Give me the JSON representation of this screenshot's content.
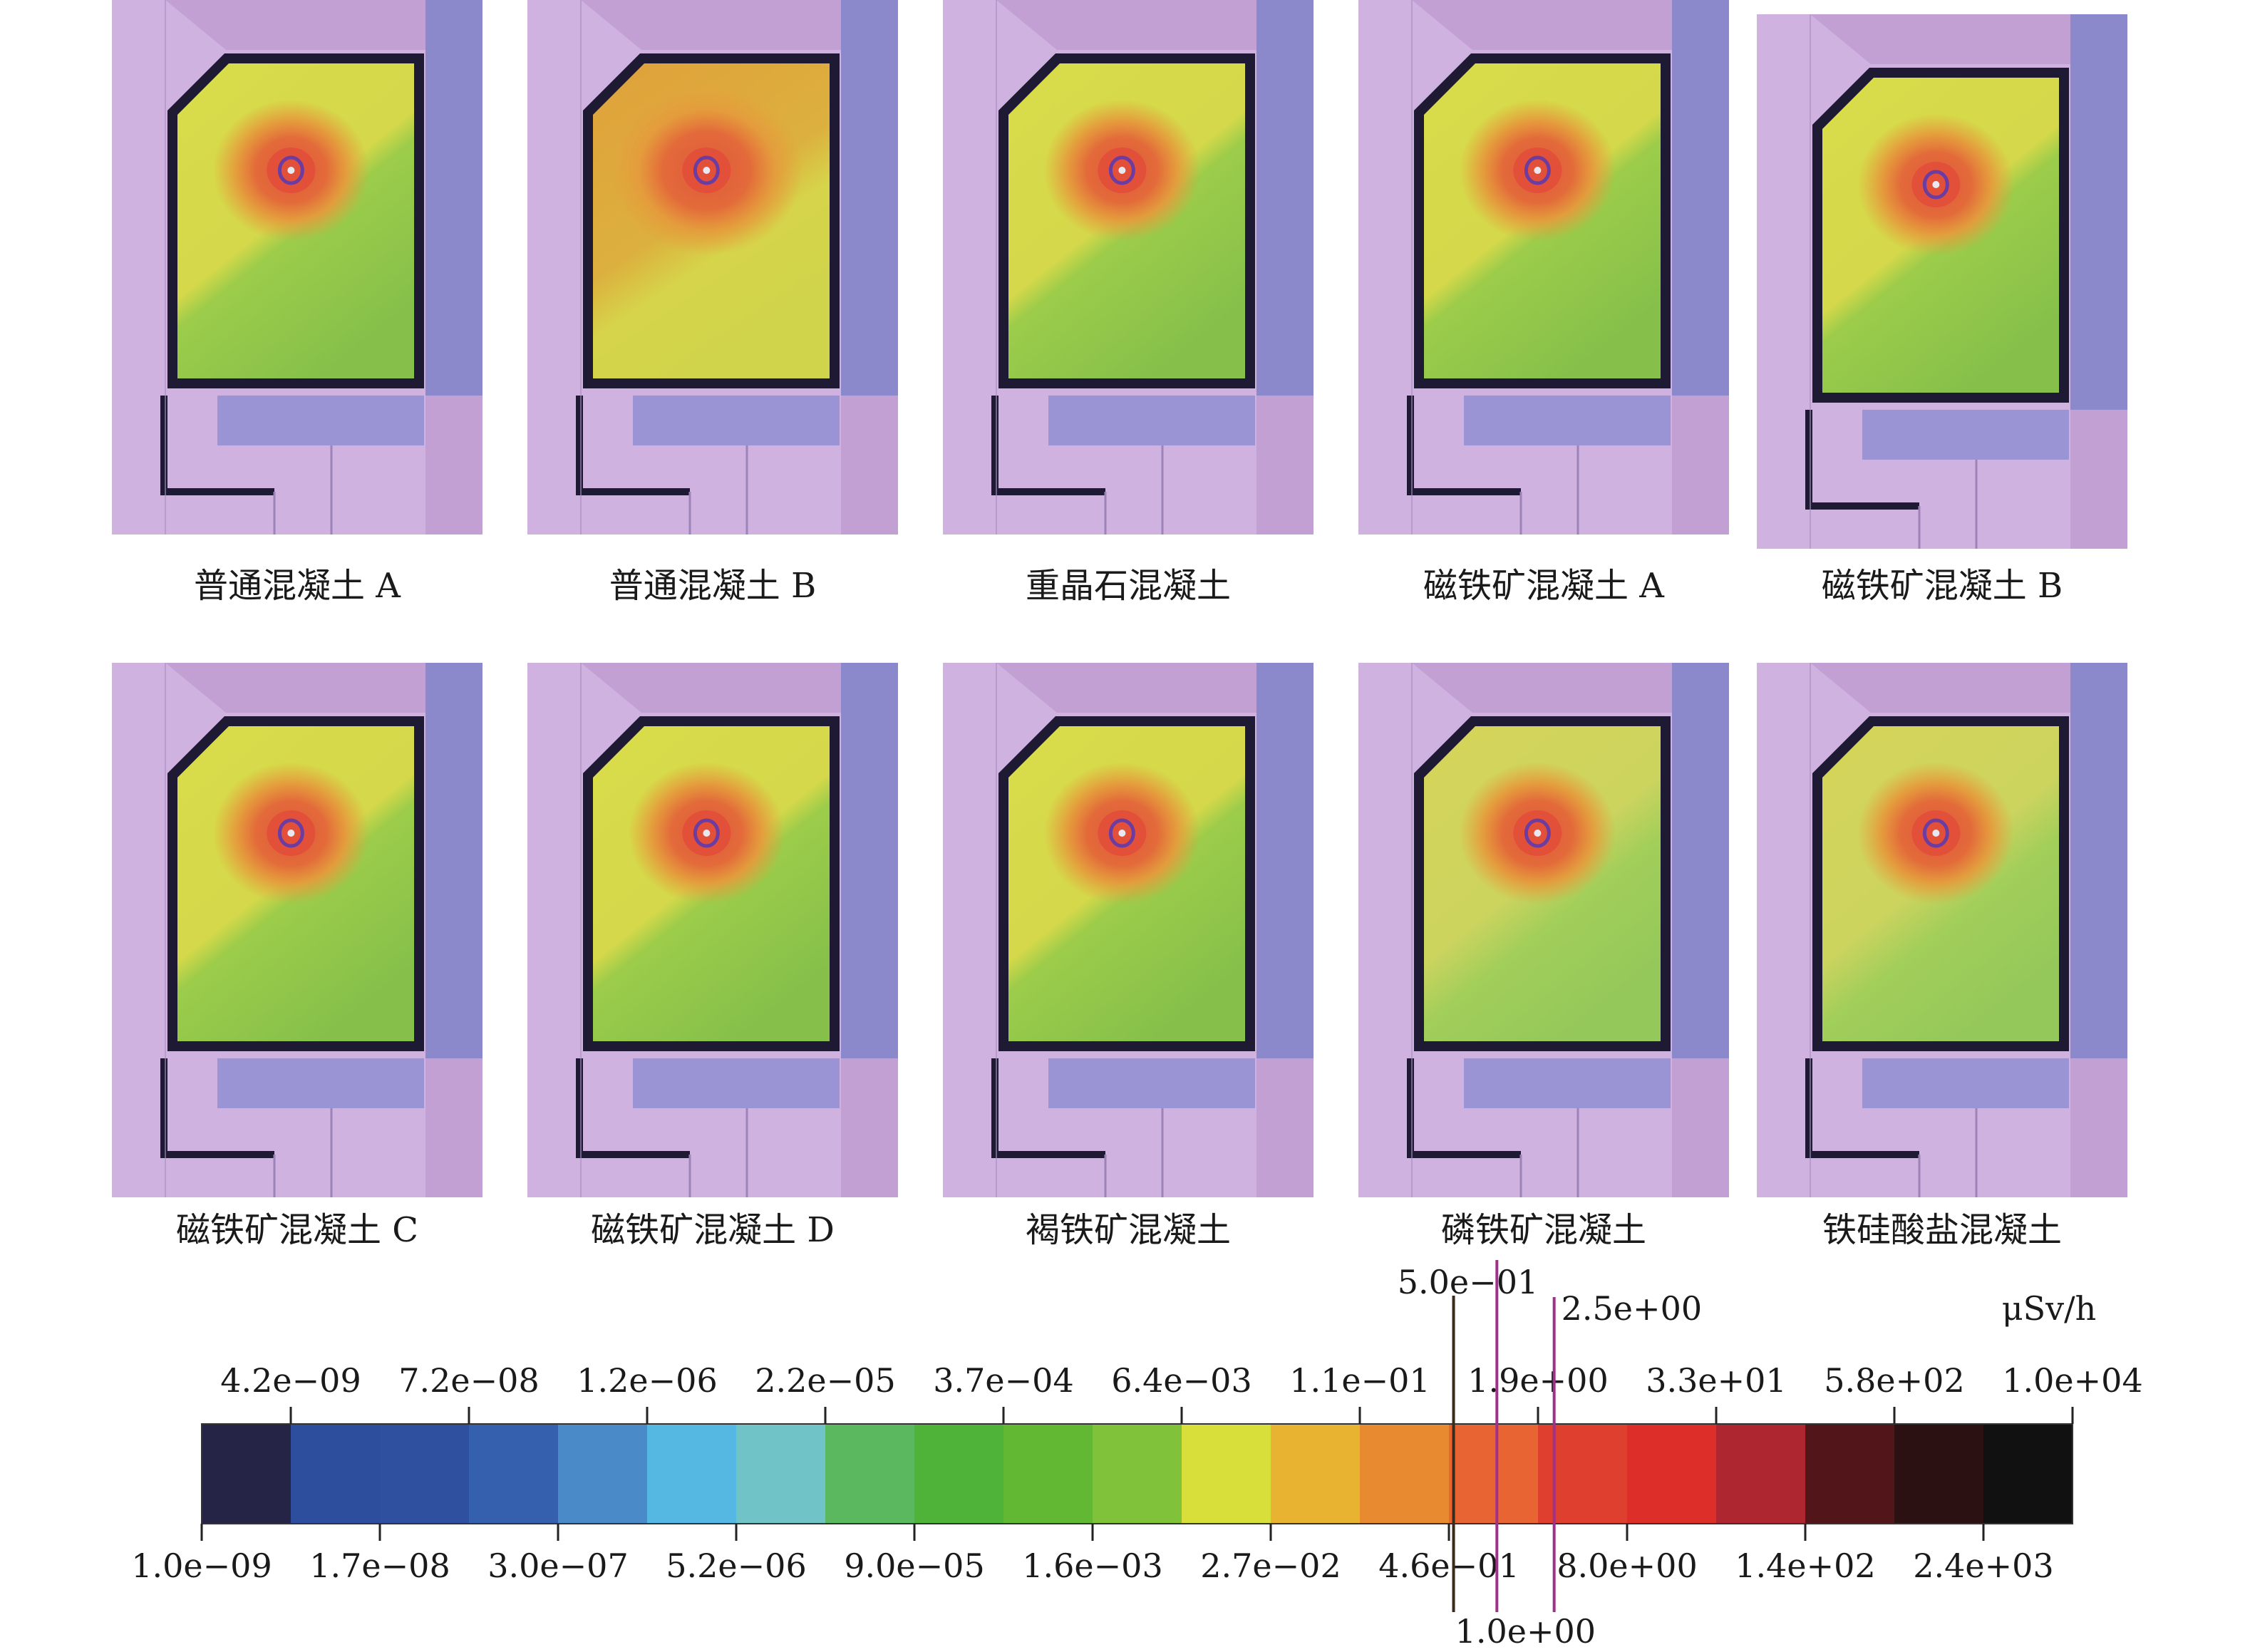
{
  "panels": [
    {
      "caption": "普通混凝土 A",
      "variant": "a"
    },
    {
      "caption": "普通混凝土 B",
      "variant": "b"
    },
    {
      "caption": "重晶石混凝土",
      "variant": "a"
    },
    {
      "caption": "磁铁矿混凝土 A",
      "variant": "c"
    },
    {
      "caption": "磁铁矿混凝土 B",
      "variant": "d"
    },
    {
      "caption": "磁铁矿混凝土 C",
      "variant": "a"
    },
    {
      "caption": "磁铁矿混凝土 D",
      "variant": "c"
    },
    {
      "caption": "褐铁矿混凝土",
      "variant": "c"
    },
    {
      "caption": "磷铁矿混凝土",
      "variant": "e"
    },
    {
      "caption": "铁硅酸盐混凝土",
      "variant": "e"
    }
  ],
  "colors": {
    "wall_pink": "#c2a0d4",
    "wall_pink_light": "#cfb2e0",
    "wall_blue": "#8c88cc",
    "wall_dark": "#1e1a33",
    "field_yellow": "#d9dc4a",
    "field_green": "#8ec44a",
    "field_orange": "#e0a03a",
    "hot_red": "#e05a3a",
    "core_purple": "#6c3ca0"
  },
  "colorbar": {
    "unit": "μSv/h",
    "colors": [
      "#252446",
      "#2d4e9d",
      "#2f4f9f",
      "#3560ae",
      "#4a8ac8",
      "#55b8e2",
      "#70c4c8",
      "#5cb85e",
      "#4fb339",
      "#62b832",
      "#80c23a",
      "#d8df3a",
      "#e8b330",
      "#e88a30",
      "#e86433",
      "#de3f2e",
      "#de2e2a",
      "#ae2630",
      "#52161a",
      "#2b1112",
      "#111111"
    ],
    "top_ticks": [
      "4.2e−09",
      "7.2e−08",
      "1.2e−06",
      "2.2e−05",
      "3.7e−04",
      "6.4e−03",
      "1.1e−01",
      "1.9e+00",
      "3.3e+01",
      "5.8e+02",
      "1.0e+04"
    ],
    "bottom_ticks": [
      "1.0e−09",
      "1.7e−08",
      "3.0e−07",
      "5.2e−06",
      "9.0e−05",
      "1.6e−03",
      "2.7e−02",
      "4.6e−01",
      "8.0e+00",
      "1.4e+02",
      "2.4e+03"
    ],
    "markers": [
      {
        "label": "5.0e−01",
        "value": 0.5,
        "color": "#3a2a1a"
      },
      {
        "label": "1.0e+00",
        "value": 1.0,
        "color": "#a0308a"
      },
      {
        "label": "2.5e+00",
        "value": 2.5,
        "color": "#a0308a"
      }
    ]
  }
}
